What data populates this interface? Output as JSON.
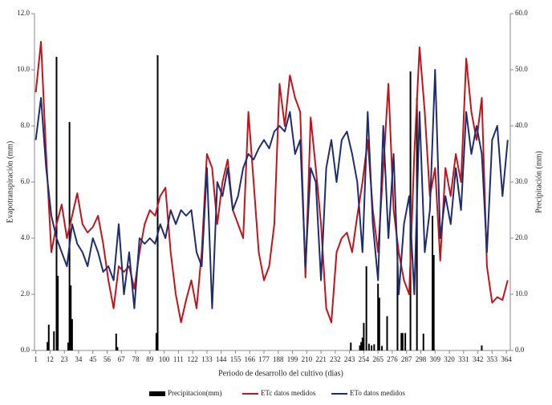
{
  "chart_data": {
    "type": "line",
    "ylabel": "Evapotranspiración (mm)",
    "y2label": "Precipitación (mm)",
    "xlabel": "Periodo de desarrollo del cultivo (dias)",
    "xlim": [
      0,
      367
    ],
    "xticks": [
      1,
      12,
      23,
      34,
      45,
      56,
      67,
      78,
      89,
      100,
      111,
      122,
      133,
      144,
      155,
      166,
      177,
      188,
      199,
      210,
      221,
      232,
      243,
      254,
      265,
      276,
      287,
      298,
      309,
      320,
      331,
      342,
      353,
      364
    ],
    "ylim": [
      0,
      12
    ],
    "yticks": [
      {
        "value": 0,
        "label": "0.0"
      },
      {
        "value": 2,
        "label": "2.0"
      },
      {
        "value": 4,
        "label": "4.0"
      },
      {
        "value": 6,
        "label": "6.0"
      },
      {
        "value": 8,
        "label": "8.0"
      },
      {
        "value": 10,
        "label": "10.0"
      },
      {
        "value": 12,
        "label": "12.0"
      }
    ],
    "y2lim": [
      0,
      60
    ],
    "y2ticks": [
      {
        "value": 0,
        "label": "0.0"
      },
      {
        "value": 10,
        "label": "10.0"
      },
      {
        "value": 20,
        "label": "20.0"
      },
      {
        "value": 30,
        "label": "30.0"
      },
      {
        "value": 40,
        "label": "40.0"
      },
      {
        "value": 50,
        "label": "50.0"
      },
      {
        "value": 60,
        "label": "60.0"
      }
    ],
    "legend": "bottom",
    "x": [
      1,
      5,
      9,
      13,
      17,
      21,
      25,
      29,
      33,
      37,
      41,
      45,
      49,
      53,
      57,
      61,
      65,
      69,
      73,
      77,
      81,
      85,
      89,
      93,
      97,
      101,
      105,
      109,
      113,
      117,
      121,
      125,
      129,
      133,
      137,
      141,
      145,
      149,
      153,
      157,
      161,
      165,
      169,
      173,
      177,
      181,
      185,
      189,
      193,
      197,
      201,
      205,
      209,
      213,
      217,
      221,
      225,
      229,
      233,
      237,
      241,
      245,
      249,
      253,
      257,
      261,
      265,
      269,
      273,
      277,
      281,
      285,
      289,
      293,
      297,
      301,
      305,
      309,
      313,
      317,
      321,
      325,
      329,
      333,
      337,
      341,
      345,
      349,
      353,
      357,
      361,
      365
    ],
    "series": [
      {
        "name": "Precipitacion(mm)",
        "type": "bar",
        "axis": "y2",
        "color": "#000000",
        "x": [
          10,
          11,
          15,
          17,
          18,
          26,
          27,
          28,
          29,
          63,
          64,
          94,
          95,
          244,
          251,
          252,
          253,
          254,
          256,
          258,
          260,
          262,
          265,
          266,
          268,
          272,
          280,
          283,
          284,
          286,
          290,
          295,
          300,
          307,
          308,
          345
        ],
        "values": [
          1.5,
          4.6,
          3.4,
          52.3,
          13.3,
          1.4,
          40.7,
          11.6,
          5.6,
          3.0,
          0.6,
          3.1,
          52.6,
          1.4,
          0.9,
          1.5,
          2.3,
          4.9,
          15.0,
          1.2,
          0.9,
          1.1,
          11.9,
          9.4,
          0.8,
          6.1,
          18.6,
          3.1,
          3.1,
          3.1,
          49.7,
          45.0,
          3.0,
          24.0,
          17.0,
          0.9
        ]
      },
      {
        "name": "ETc datos medidos",
        "type": "line",
        "color": "#c0141c",
        "values": [
          9.2,
          11.0,
          7.0,
          3.5,
          4.5,
          5.2,
          4.0,
          4.8,
          5.6,
          4.5,
          4.2,
          4.4,
          4.8,
          3.8,
          2.5,
          1.5,
          3.0,
          2.8,
          3.0,
          2.2,
          3.5,
          4.5,
          5.0,
          4.8,
          5.5,
          5.8,
          3.5,
          2.0,
          1.0,
          1.8,
          2.5,
          1.5,
          3.5,
          7.0,
          6.5,
          4.5,
          6.0,
          6.8,
          5.0,
          4.5,
          4.0,
          8.5,
          6.0,
          3.5,
          2.5,
          3.0,
          4.5,
          9.5,
          8.0,
          9.8,
          9.0,
          8.5,
          2.6,
          8.3,
          6.5,
          4.5,
          1.5,
          1.0,
          3.5,
          4.0,
          4.2,
          3.5,
          4.8,
          6.0,
          7.5,
          5.0,
          3.5,
          6.5,
          9.5,
          5.0,
          3.5,
          2.5,
          2.0,
          7.0,
          10.8,
          8.5,
          5.5,
          6.5,
          3.2,
          6.5,
          5.5,
          7.0,
          6.0,
          10.4,
          8.5,
          7.5,
          9.0,
          3.0,
          1.7,
          1.9,
          1.8,
          2.5
        ]
      },
      {
        "name": "ETo datos medidos",
        "type": "line",
        "color": "#1f2d6e",
        "values": [
          7.5,
          9.0,
          6.5,
          4.8,
          4.0,
          3.5,
          3.0,
          4.5,
          3.8,
          3.5,
          3.0,
          4.0,
          3.5,
          2.8,
          3.0,
          2.5,
          4.5,
          2.0,
          3.5,
          1.5,
          4.0,
          3.8,
          4.0,
          3.8,
          4.5,
          4.0,
          5.0,
          4.5,
          5.0,
          4.8,
          5.0,
          3.5,
          3.0,
          6.5,
          1.5,
          6.0,
          5.5,
          6.5,
          5.0,
          5.5,
          6.5,
          7.0,
          6.8,
          7.2,
          7.5,
          7.2,
          7.8,
          8.0,
          7.8,
          8.5,
          7.0,
          7.5,
          3.0,
          6.5,
          6.0,
          2.5,
          6.5,
          7.5,
          6.0,
          7.5,
          7.8,
          7.0,
          6.0,
          3.5,
          8.5,
          4.5,
          2.5,
          8.0,
          4.0,
          7.0,
          2.0,
          4.5,
          5.5,
          2.0,
          8.5,
          3.5,
          5.0,
          10.0,
          4.0,
          5.5,
          4.5,
          6.5,
          5.0,
          8.5,
          7.0,
          8.0,
          7.0,
          3.5,
          7.5,
          8.0,
          5.5,
          7.5
        ]
      }
    ]
  }
}
